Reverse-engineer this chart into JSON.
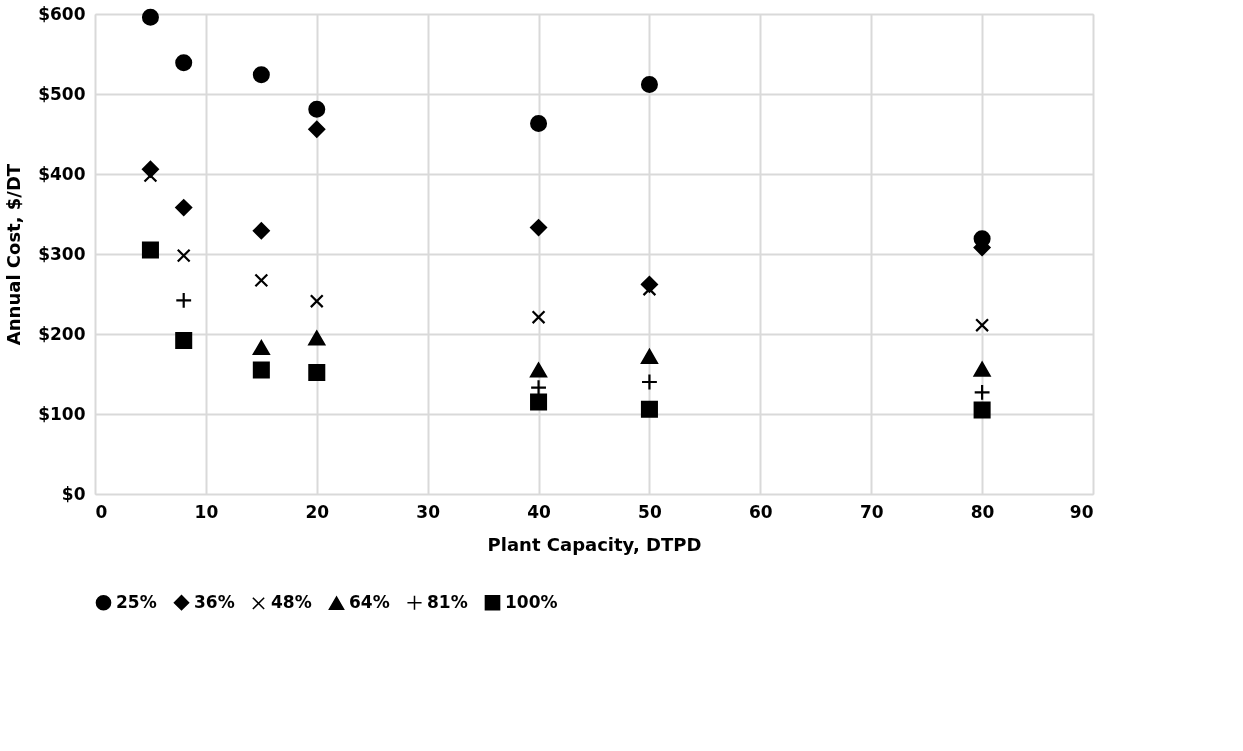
{
  "chart_data": {
    "type": "scatter",
    "xlabel": "Plant Capacity, DTPD",
    "ylabel": "Annual Cost, $/DT",
    "x": [
      5,
      8,
      15,
      20,
      40,
      50,
      80
    ],
    "xlim": [
      0,
      90
    ],
    "xticks": [
      0,
      10,
      20,
      30,
      40,
      50,
      60,
      70,
      80,
      90
    ],
    "ylim": [
      0,
      600
    ],
    "yticks": [
      {
        "value": 0,
        "label": "$0"
      },
      {
        "value": 100,
        "label": "$100"
      },
      {
        "value": 200,
        "label": "$200"
      },
      {
        "value": 300,
        "label": "$300"
      },
      {
        "value": 400,
        "label": "$400"
      },
      {
        "value": 500,
        "label": "$500"
      },
      {
        "value": 600,
        "label": "$600"
      }
    ],
    "grid": true,
    "legend": "bottom",
    "series": [
      {
        "name": "25%",
        "color": "#000000",
        "marker": "circle",
        "values": [
          596,
          539,
          524,
          481,
          463,
          512,
          319
        ]
      },
      {
        "name": "36%",
        "color": "#000000",
        "marker": "diamond",
        "values": [
          406,
          358,
          329,
          456,
          333,
          262,
          308
        ]
      },
      {
        "name": "48%",
        "color": "#000000",
        "marker": "cross",
        "values": [
          398,
          298,
          267,
          241,
          221,
          256,
          211
        ]
      },
      {
        "name": "64%",
        "color": "#000000",
        "marker": "triangle",
        "values": [
          null,
          null,
          183,
          195,
          155,
          172,
          156
        ]
      },
      {
        "name": "81%",
        "color": "#000000",
        "marker": "plus",
        "values": [
          null,
          242,
          null,
          null,
          133,
          140,
          127
        ]
      },
      {
        "name": "100%",
        "color": "#000000",
        "marker": "square",
        "values": [
          305,
          192,
          155,
          152,
          115,
          106,
          105
        ]
      }
    ]
  }
}
